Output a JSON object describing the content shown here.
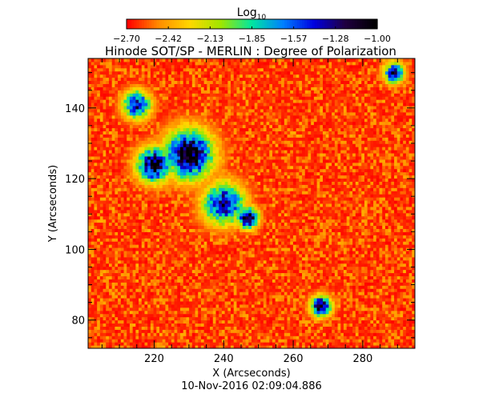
{
  "chart_data": {
    "type": "heatmap",
    "title": "Hinode SOT/SP - MERLIN : Degree of Polarization",
    "xlabel": "X (Arcseconds)",
    "ylabel": "Y (Arcseconds)",
    "timestamp": "10-Nov-2016 02:09:04.886",
    "xlim": [
      201,
      295
    ],
    "ylim": [
      72,
      154
    ],
    "xticks": [
      "220",
      "240",
      "260",
      "280"
    ],
    "yticks": [
      "80",
      "100",
      "120",
      "140"
    ],
    "colorbar": {
      "label_main": "Log",
      "label_sub": "10",
      "range": [
        -2.7,
        -1.0
      ],
      "ticks": [
        "-2.70",
        "-2.42",
        "-2.13",
        "-1.85",
        "-1.57",
        "-1.28",
        "-1.00"
      ],
      "colors": [
        "#ff0000",
        "#ff8c00",
        "#ffd700",
        "#9fe600",
        "#00e6a0",
        "#0080ff",
        "#0000e0",
        "#200040",
        "#000000"
      ]
    },
    "features": [
      {
        "x": 230,
        "y": 127,
        "value": -1.0,
        "spread": 7
      },
      {
        "x": 220,
        "y": 124,
        "value": -1.1,
        "spread": 5
      },
      {
        "x": 215,
        "y": 141,
        "value": -1.3,
        "spread": 4
      },
      {
        "x": 240,
        "y": 113,
        "value": -1.3,
        "spread": 6
      },
      {
        "x": 247,
        "y": 109,
        "value": -1.0,
        "spread": 3
      },
      {
        "x": 268,
        "y": 84,
        "value": -1.1,
        "spread": 3
      },
      {
        "x": 289,
        "y": 150,
        "value": -1.3,
        "spread": 3
      }
    ]
  }
}
